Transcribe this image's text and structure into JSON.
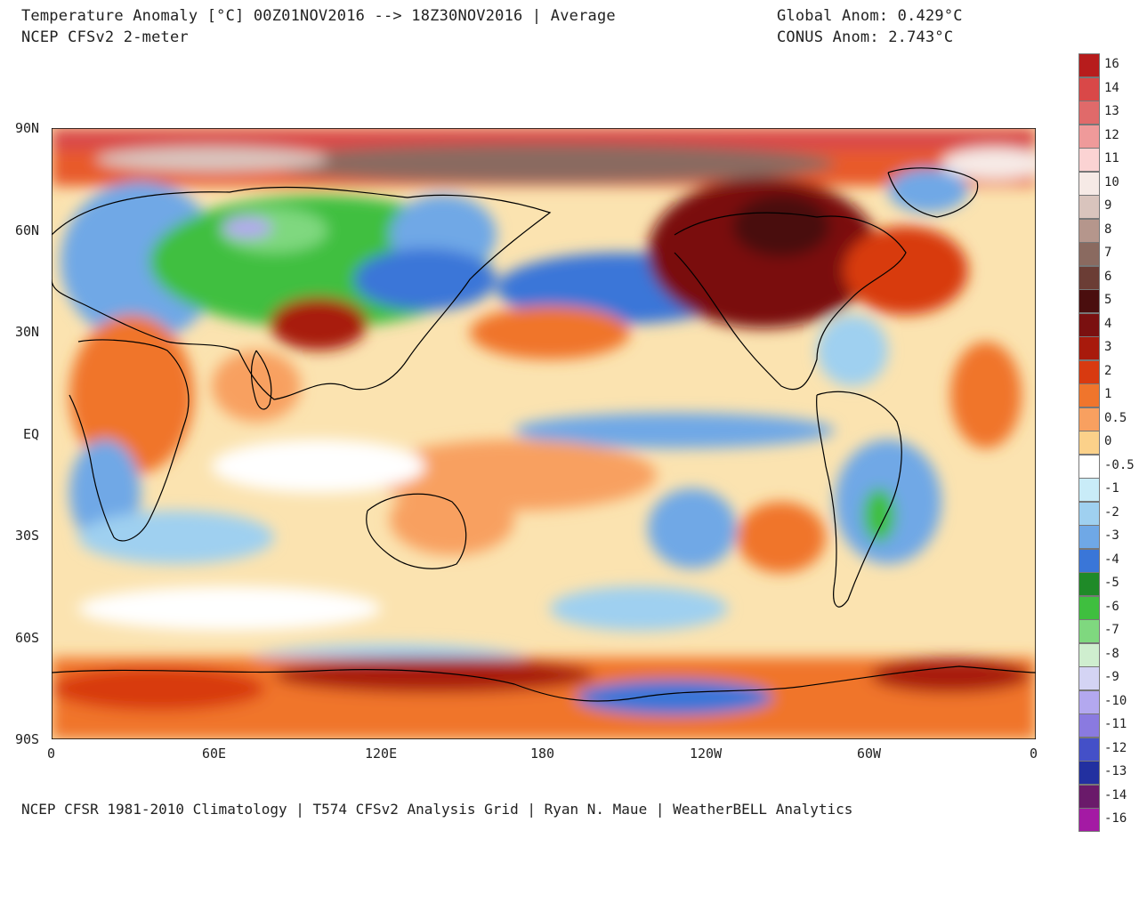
{
  "header": {
    "title_line1": "Temperature Anomaly [°C] 00Z01NOV2016 --> 18Z30NOV2016 | Average",
    "title_line2": "NCEP CFSv2 2-meter",
    "global_anom": "Global Anom: 0.429°C",
    "conus_anom": "CONUS Anom: 2.743°C"
  },
  "map": {
    "projection": "equirectangular",
    "lon_ticks": [
      "0",
      "60E",
      "120E",
      "180",
      "120W",
      "60W",
      "0"
    ],
    "lat_ticks": [
      "90N",
      "60N",
      "30N",
      "EQ",
      "30S",
      "60S",
      "90S"
    ],
    "colors": {
      "land_outline": "#000000",
      "neutral": "#ffffff"
    }
  },
  "colorbar": {
    "labels": [
      "16",
      "14",
      "13",
      "12",
      "11",
      "10",
      "9",
      "8",
      "7",
      "6",
      "5",
      "4",
      "3",
      "2",
      "1",
      "0.5",
      "0",
      "-0.5",
      "-1",
      "-2",
      "-3",
      "-4",
      "-5",
      "-6",
      "-7",
      "-8",
      "-9",
      "-10",
      "-11",
      "-12",
      "-13",
      "-14",
      "-16"
    ],
    "colors": [
      "#b71c1c",
      "#d94848",
      "#e06a6a",
      "#ef9a9a",
      "#fbd3d3",
      "#f6eae6",
      "#d9c4bd",
      "#b5968c",
      "#8a6a60",
      "#6b3d35",
      "#4a0e0e",
      "#7a1010",
      "#a81a0c",
      "#d83a10",
      "#f0752c",
      "#f8a060",
      "#fbd18a",
      "#ffffff",
      "#c9ecf8",
      "#9fd0f0",
      "#6fa8e6",
      "#3a76d8",
      "#1f8a28",
      "#3fbf3f",
      "#7fd87f",
      "#cfeecf",
      "#d4d4f4",
      "#b3a8ef",
      "#8a7ae0",
      "#4450c8",
      "#2230a0",
      "#6a1a6a",
      "#a41aa4"
    ]
  },
  "footer": "NCEP CFSR 1981-2010 Climatology | T574 CFSv2 Analysis Grid | Ryan N. Maue | WeatherBELL Analytics"
}
